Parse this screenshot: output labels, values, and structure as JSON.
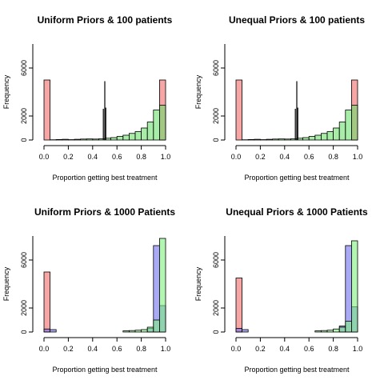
{
  "chart_data": [
    {
      "type": "bar",
      "title": "Uniform Priors & 100 patients",
      "xlabel": "Proportion getting best treatment",
      "ylabel": "Frequency",
      "xlim": [
        0,
        1
      ],
      "ylim": [
        0,
        8000
      ],
      "xticks": [
        "0.0",
        "0.2",
        "0.4",
        "0.6",
        "0.8",
        "1.0"
      ],
      "yticks": [
        "0",
        "2000",
        "6000"
      ],
      "ytick_values": [
        0,
        2000,
        6000
      ],
      "bin_width": 0.05,
      "series": [
        {
          "color": "#f26b6b",
          "bins": [
            {
              "x": 0.0,
              "y": 5000
            },
            {
              "x": 0.95,
              "y": 5000
            }
          ]
        },
        {
          "color": "#6de06d",
          "bins": [
            {
              "x": 0.05,
              "y": 20
            },
            {
              "x": 0.1,
              "y": 40
            },
            {
              "x": 0.15,
              "y": 60
            },
            {
              "x": 0.2,
              "y": 30
            },
            {
              "x": 0.25,
              "y": 60
            },
            {
              "x": 0.3,
              "y": 80
            },
            {
              "x": 0.35,
              "y": 90
            },
            {
              "x": 0.4,
              "y": 80
            },
            {
              "x": 0.45,
              "y": 100
            },
            {
              "x": 0.5,
              "y": 150
            },
            {
              "x": 0.55,
              "y": 200
            },
            {
              "x": 0.6,
              "y": 300
            },
            {
              "x": 0.65,
              "y": 400
            },
            {
              "x": 0.7,
              "y": 550
            },
            {
              "x": 0.75,
              "y": 700
            },
            {
              "x": 0.8,
              "y": 1000
            },
            {
              "x": 0.85,
              "y": 1500
            },
            {
              "x": 0.9,
              "y": 2500
            },
            {
              "x": 0.95,
              "y": 2900
            }
          ]
        }
      ],
      "spikes": [
        {
          "x": 0.5,
          "y": 4900
        },
        {
          "x": 0.488,
          "y": 2600
        },
        {
          "x": 0.508,
          "y": 2700
        }
      ]
    },
    {
      "type": "bar",
      "title": "Unequal Priors & 100 patients",
      "xlabel": "Proportion getting best treatment",
      "ylabel": "Frequency",
      "xlim": [
        0,
        1
      ],
      "ylim": [
        0,
        8000
      ],
      "xticks": [
        "0.0",
        "0.2",
        "0.4",
        "0.6",
        "0.8",
        "1.0"
      ],
      "yticks": [
        "0",
        "2000",
        "6000"
      ],
      "ytick_values": [
        0,
        2000,
        6000
      ],
      "bin_width": 0.05,
      "series": [
        {
          "color": "#f26b6b",
          "bins": [
            {
              "x": 0.0,
              "y": 5000
            },
            {
              "x": 0.95,
              "y": 5000
            }
          ]
        },
        {
          "color": "#6de06d",
          "bins": [
            {
              "x": 0.05,
              "y": 20
            },
            {
              "x": 0.1,
              "y": 40
            },
            {
              "x": 0.15,
              "y": 60
            },
            {
              "x": 0.2,
              "y": 30
            },
            {
              "x": 0.25,
              "y": 60
            },
            {
              "x": 0.3,
              "y": 80
            },
            {
              "x": 0.35,
              "y": 90
            },
            {
              "x": 0.4,
              "y": 80
            },
            {
              "x": 0.45,
              "y": 100
            },
            {
              "x": 0.5,
              "y": 150
            },
            {
              "x": 0.55,
              "y": 200
            },
            {
              "x": 0.6,
              "y": 300
            },
            {
              "x": 0.65,
              "y": 400
            },
            {
              "x": 0.7,
              "y": 550
            },
            {
              "x": 0.75,
              "y": 700
            },
            {
              "x": 0.8,
              "y": 1000
            },
            {
              "x": 0.85,
              "y": 1500
            },
            {
              "x": 0.9,
              "y": 2500
            },
            {
              "x": 0.95,
              "y": 2900
            }
          ]
        }
      ],
      "spikes": [
        {
          "x": 0.5,
          "y": 4900
        },
        {
          "x": 0.488,
          "y": 2600
        },
        {
          "x": 0.508,
          "y": 2700
        }
      ]
    },
    {
      "type": "bar",
      "title": "Uniform Priors & 1000 Patients",
      "xlabel": "Proportion getting best treatment",
      "ylabel": "Frequency",
      "xlim": [
        0,
        1
      ],
      "ylim": [
        0,
        8000
      ],
      "xticks": [
        "0.0",
        "0.2",
        "0.4",
        "0.6",
        "0.8",
        "1.0"
      ],
      "yticks": [
        "0",
        "2000",
        "6000"
      ],
      "ytick_values": [
        0,
        2000,
        6000
      ],
      "bin_width": 0.05,
      "series": [
        {
          "color": "#f26b6b",
          "bins": [
            {
              "x": 0.0,
              "y": 5000
            }
          ]
        },
        {
          "color": "#6f6ff0",
          "bins": [
            {
              "x": 0.0,
              "y": 250
            },
            {
              "x": 0.05,
              "y": 200
            },
            {
              "x": 0.85,
              "y": 300
            },
            {
              "x": 0.9,
              "y": 7200
            },
            {
              "x": 0.95,
              "y": 2200
            }
          ]
        },
        {
          "color": "#7ef07e",
          "bins": [
            {
              "x": 0.65,
              "y": 100
            },
            {
              "x": 0.7,
              "y": 120
            },
            {
              "x": 0.75,
              "y": 150
            },
            {
              "x": 0.8,
              "y": 200
            },
            {
              "x": 0.85,
              "y": 400
            },
            {
              "x": 0.9,
              "y": 1000
            },
            {
              "x": 0.95,
              "y": 7800
            }
          ]
        }
      ],
      "spikes": []
    },
    {
      "type": "bar",
      "title": "Unequal Priors & 1000 Patients",
      "xlabel": "Proportion getting best treatment",
      "ylabel": "Frequency",
      "xlim": [
        0,
        1
      ],
      "ylim": [
        0,
        8000
      ],
      "xticks": [
        "0.0",
        "0.2",
        "0.4",
        "0.6",
        "0.8",
        "1.0"
      ],
      "yticks": [
        "0",
        "2000",
        "6000"
      ],
      "ytick_values": [
        0,
        2000,
        6000
      ],
      "bin_width": 0.05,
      "series": [
        {
          "color": "#f26b6b",
          "bins": [
            {
              "x": 0.0,
              "y": 4500
            }
          ]
        },
        {
          "color": "#6f6ff0",
          "bins": [
            {
              "x": 0.0,
              "y": 300
            },
            {
              "x": 0.05,
              "y": 200
            },
            {
              "x": 0.85,
              "y": 500
            },
            {
              "x": 0.9,
              "y": 7200
            },
            {
              "x": 0.95,
              "y": 2100
            }
          ]
        },
        {
          "color": "#7ef07e",
          "bins": [
            {
              "x": 0.65,
              "y": 100
            },
            {
              "x": 0.7,
              "y": 120
            },
            {
              "x": 0.75,
              "y": 150
            },
            {
              "x": 0.8,
              "y": 250
            },
            {
              "x": 0.85,
              "y": 400
            },
            {
              "x": 0.9,
              "y": 900
            },
            {
              "x": 0.95,
              "y": 7600
            }
          ]
        }
      ],
      "spikes": []
    }
  ]
}
